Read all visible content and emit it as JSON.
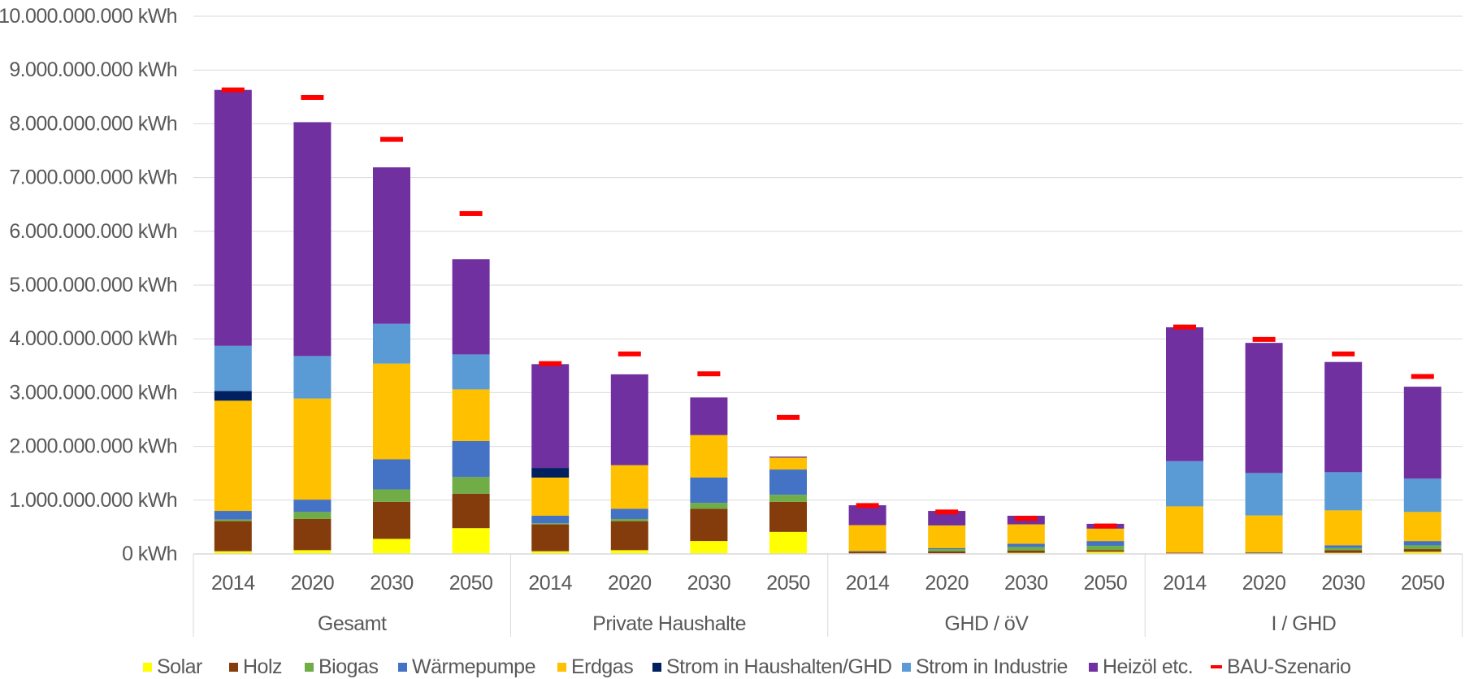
{
  "chart_data": {
    "type": "bar",
    "stacked": true,
    "grid": true,
    "legend_placement": "bottom",
    "ylim": [
      0,
      10000000000
    ],
    "y_ticks": [
      "0 kWh",
      "1.000.000.000 kWh",
      "2.000.000.000 kWh",
      "3.000.000.000 kWh",
      "4.000.000.000 kWh",
      "5.000.000.000 kWh",
      "6.000.000.000 kWh",
      "7.000.000.000 kWh",
      "8.000.000.000 kWh",
      "9.000.000.000 kWh",
      "10.000.000.000 kWh"
    ],
    "groups": [
      "Gesamt",
      "Private Haushalte",
      "GHD / öV",
      "I / GHD"
    ],
    "years": [
      "2014",
      "2020",
      "2030",
      "2050"
    ],
    "series": [
      {
        "name": "Solar",
        "color": "#FFFF00",
        "values": [
          50000000,
          70000000,
          280000000,
          480000000,
          50000000,
          70000000,
          240000000,
          410000000,
          5000000,
          10000000,
          20000000,
          40000000,
          5000000,
          5000000,
          20000000,
          40000000
        ]
      },
      {
        "name": "Holz",
        "color": "#843C0C",
        "values": [
          560000000,
          580000000,
          690000000,
          640000000,
          500000000,
          540000000,
          600000000,
          560000000,
          40000000,
          40000000,
          40000000,
          30000000,
          20000000,
          20000000,
          50000000,
          50000000
        ]
      },
      {
        "name": "Biogas",
        "color": "#70AD47",
        "values": [
          30000000,
          130000000,
          230000000,
          310000000,
          20000000,
          40000000,
          110000000,
          130000000,
          5000000,
          40000000,
          70000000,
          80000000,
          0,
          10000000,
          40000000,
          70000000
        ]
      },
      {
        "name": "Wärmepumpe",
        "color": "#4472C4",
        "values": [
          160000000,
          230000000,
          560000000,
          670000000,
          140000000,
          190000000,
          470000000,
          470000000,
          5000000,
          20000000,
          60000000,
          90000000,
          0,
          0,
          50000000,
          80000000
        ]
      },
      {
        "name": "Erdgas",
        "color": "#FFC000",
        "values": [
          2050000000,
          1880000000,
          1780000000,
          960000000,
          710000000,
          810000000,
          790000000,
          220000000,
          480000000,
          420000000,
          360000000,
          230000000,
          860000000,
          680000000,
          650000000,
          540000000
        ]
      },
      {
        "name": "Strom in Haushalten/GHD",
        "color": "#002060",
        "values": [
          180000000,
          0,
          0,
          0,
          180000000,
          0,
          0,
          0,
          0,
          0,
          0,
          0,
          0,
          0,
          0,
          0
        ]
      },
      {
        "name": "Strom in Industrie",
        "color": "#5B9BD5",
        "values": [
          840000000,
          790000000,
          740000000,
          650000000,
          0,
          0,
          0,
          0,
          0,
          0,
          0,
          0,
          840000000,
          790000000,
          710000000,
          620000000
        ]
      },
      {
        "name": "Heizöl etc.",
        "color": "#7030A0",
        "values": [
          4760000000,
          4350000000,
          2910000000,
          1770000000,
          1930000000,
          1690000000,
          700000000,
          20000000,
          370000000,
          270000000,
          160000000,
          90000000,
          2490000000,
          2420000000,
          2050000000,
          1710000000
        ]
      }
    ],
    "reference": {
      "name": "BAU-Szenario",
      "color": "#FF0000",
      "values": [
        8630000000,
        8490000000,
        7710000000,
        6330000000,
        3540000000,
        3720000000,
        3350000000,
        2540000000,
        900000000,
        780000000,
        660000000,
        520000000,
        4220000000,
        3990000000,
        3720000000,
        3300000000
      ]
    }
  }
}
